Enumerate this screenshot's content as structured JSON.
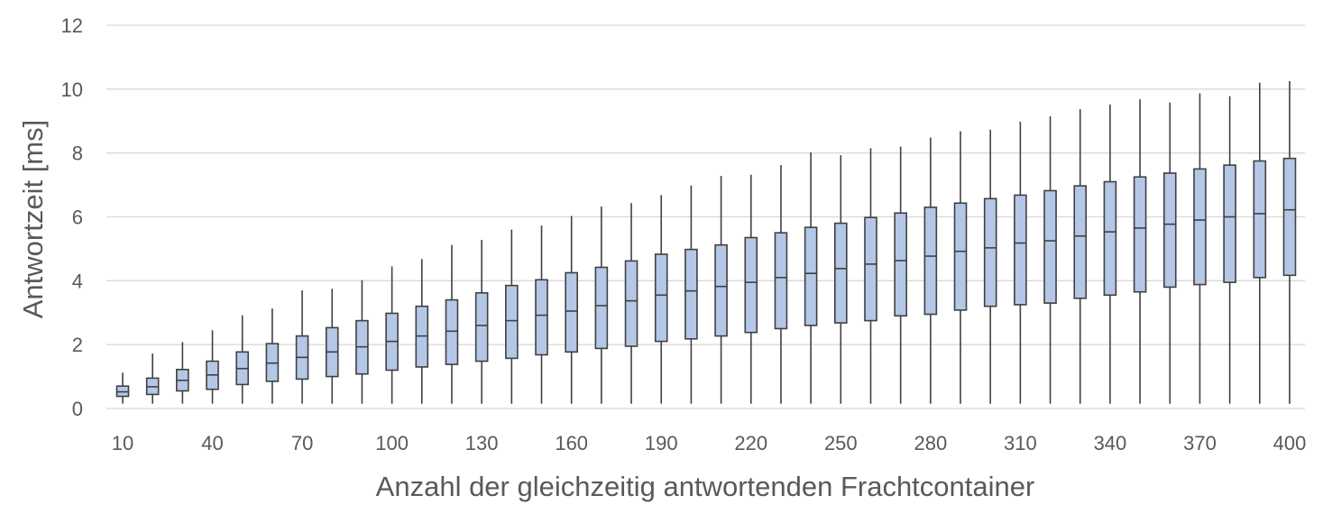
{
  "chart_data": {
    "type": "boxplot",
    "title": "",
    "xlabel": "Anzahl der gleichzeitig  antwortenden Frachtcontainer",
    "ylabel": "Antwortzeit [ms]",
    "ylim": [
      0,
      12
    ],
    "yticks": [
      0,
      2,
      4,
      6,
      8,
      10,
      12
    ],
    "grid": true,
    "box_color": "#b4c7e7",
    "line_color": "#404040",
    "grid_color": "#d9d9d9",
    "text_color": "#595959",
    "categories": [
      10,
      20,
      30,
      40,
      50,
      60,
      70,
      80,
      90,
      100,
      110,
      120,
      130,
      140,
      150,
      160,
      170,
      180,
      190,
      200,
      210,
      220,
      230,
      240,
      250,
      260,
      270,
      280,
      290,
      300,
      310,
      320,
      330,
      340,
      350,
      360,
      370,
      380,
      390,
      400
    ],
    "x_tick_labels": [
      "10",
      "40",
      "70",
      "100",
      "130",
      "160",
      "190",
      "220",
      "250",
      "280",
      "310",
      "340",
      "370",
      "400"
    ],
    "x_tick_label_indices": [
      0,
      3,
      6,
      9,
      12,
      15,
      18,
      21,
      24,
      27,
      30,
      33,
      36,
      39
    ],
    "min": [
      0.15,
      0.15,
      0.15,
      0.15,
      0.15,
      0.15,
      0.15,
      0.15,
      0.15,
      0.15,
      0.15,
      0.15,
      0.15,
      0.15,
      0.15,
      0.15,
      0.15,
      0.15,
      0.15,
      0.15,
      0.15,
      0.15,
      0.15,
      0.15,
      0.15,
      0.15,
      0.15,
      0.15,
      0.15,
      0.15,
      0.15,
      0.15,
      0.15,
      0.15,
      0.15,
      0.15,
      0.15,
      0.15,
      0.15,
      0.15
    ],
    "q1": [
      0.38,
      0.44,
      0.55,
      0.6,
      0.75,
      0.85,
      0.92,
      1.0,
      1.08,
      1.2,
      1.3,
      1.38,
      1.48,
      1.57,
      1.68,
      1.77,
      1.88,
      1.95,
      2.1,
      2.18,
      2.27,
      2.38,
      2.5,
      2.6,
      2.68,
      2.75,
      2.9,
      2.95,
      3.08,
      3.2,
      3.25,
      3.3,
      3.45,
      3.55,
      3.65,
      3.8,
      3.88,
      3.95,
      4.1,
      4.17
    ],
    "median": [
      0.52,
      0.68,
      0.88,
      1.05,
      1.25,
      1.42,
      1.6,
      1.77,
      1.93,
      2.1,
      2.27,
      2.42,
      2.6,
      2.75,
      2.92,
      3.05,
      3.22,
      3.37,
      3.55,
      3.68,
      3.82,
      3.95,
      4.1,
      4.23,
      4.38,
      4.52,
      4.63,
      4.77,
      4.92,
      5.03,
      5.18,
      5.25,
      5.4,
      5.53,
      5.65,
      5.77,
      5.9,
      6.0,
      6.1,
      6.22
    ],
    "q3": [
      0.7,
      0.95,
      1.22,
      1.48,
      1.77,
      2.03,
      2.27,
      2.53,
      2.75,
      2.98,
      3.2,
      3.4,
      3.62,
      3.85,
      4.03,
      4.25,
      4.42,
      4.62,
      4.83,
      4.98,
      5.12,
      5.35,
      5.5,
      5.67,
      5.8,
      5.98,
      6.12,
      6.3,
      6.43,
      6.57,
      6.68,
      6.82,
      6.97,
      7.1,
      7.25,
      7.37,
      7.5,
      7.62,
      7.75,
      7.83
    ],
    "max": [
      1.12,
      1.72,
      2.08,
      2.45,
      2.92,
      3.13,
      3.7,
      3.75,
      4.02,
      4.45,
      4.68,
      5.12,
      5.28,
      5.6,
      5.73,
      6.03,
      6.32,
      6.43,
      6.68,
      6.98,
      7.28,
      7.32,
      7.62,
      8.02,
      7.93,
      8.15,
      8.2,
      8.48,
      8.68,
      8.73,
      8.98,
      9.15,
      9.37,
      9.52,
      9.68,
      9.58,
      9.87,
      9.78,
      10.2,
      10.25
    ]
  }
}
